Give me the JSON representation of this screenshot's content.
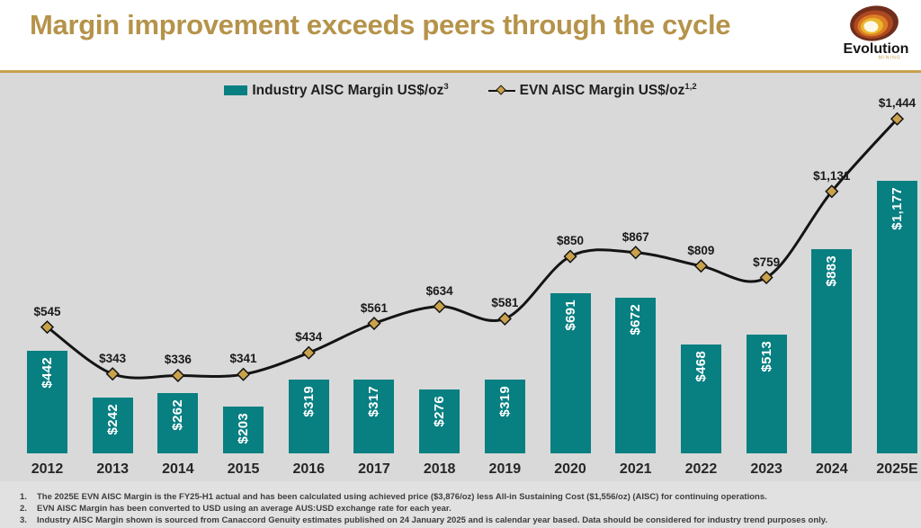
{
  "header": {
    "title": "Margin improvement exceeds peers through the cycle",
    "logo_text": "Evolution",
    "logo_subtext": "MINING"
  },
  "legend": {
    "items": [
      {
        "label": "Industry AISC Margin US$/oz",
        "sup": "3",
        "icon": "teal-bar-swatch"
      },
      {
        "label": "EVN AISC Margin US$/oz",
        "sup": "1,2",
        "icon": "black-line-gold-diamond"
      }
    ]
  },
  "chart_data": {
    "type": "bar",
    "subtype": "bar-with-line-overlay",
    "categories": [
      "2012",
      "2013",
      "2014",
      "2015",
      "2016",
      "2017",
      "2018",
      "2019",
      "2020",
      "2021",
      "2022",
      "2023",
      "2024",
      "2025E"
    ],
    "series": [
      {
        "name": "Industry AISC Margin US$/oz",
        "type": "bar",
        "color": "#087f81",
        "values": [
          442,
          242,
          262,
          203,
          319,
          317,
          276,
          319,
          691,
          672,
          468,
          513,
          883,
          1177
        ],
        "labels": [
          "$442",
          "$242",
          "$262",
          "$203",
          "$319",
          "$317",
          "$276",
          "$319",
          "$691",
          "$672",
          "$468",
          "$513",
          "$883",
          "$1,177"
        ]
      },
      {
        "name": "EVN AISC Margin US$/oz",
        "type": "line",
        "color": "#141414",
        "marker": "diamond",
        "marker_color": "#c9a24b",
        "values": [
          545,
          343,
          336,
          341,
          434,
          561,
          634,
          581,
          850,
          867,
          809,
          759,
          1131,
          1444
        ],
        "labels": [
          "$545",
          "$343",
          "$336",
          "$341",
          "$434",
          "$561",
          "$634",
          "$581",
          "$850",
          "$867",
          "$809",
          "$759",
          "$1,131",
          "$1,444"
        ]
      }
    ],
    "ylim": [
      0,
      1560
    ],
    "grid": false,
    "axes_visible": false,
    "legend_position": "top-center",
    "bar_label_style": "white rotated 90deg inside bar near top",
    "line_label_style": "black above each diamond marker"
  },
  "footnotes": [
    {
      "num": "1.",
      "text": "The 2025E EVN AISC Margin is the FY25-H1 actual and has been calculated using achieved price ($3,876/oz) less All-in Sustaining Cost ($1,556/oz) (AISC) for continuing operations."
    },
    {
      "num": "2.",
      "text": "EVN AISC Margin has been converted to USD using an average AUS:USD exchange rate for each year."
    },
    {
      "num": "3.",
      "text": "Industry AISC Margin shown is sourced from Canaccord Genuity estimates published on 24 January 2025 and is calendar year based. Data should be considered for industry trend purposes only."
    }
  ],
  "colors": {
    "accent_gold": "#c8a14e",
    "title_gold": "#b5934a",
    "bar_teal": "#087f81",
    "line_black": "#141414",
    "diamond_gold": "#c9a24b",
    "background_gray": "#d9d9d9"
  }
}
